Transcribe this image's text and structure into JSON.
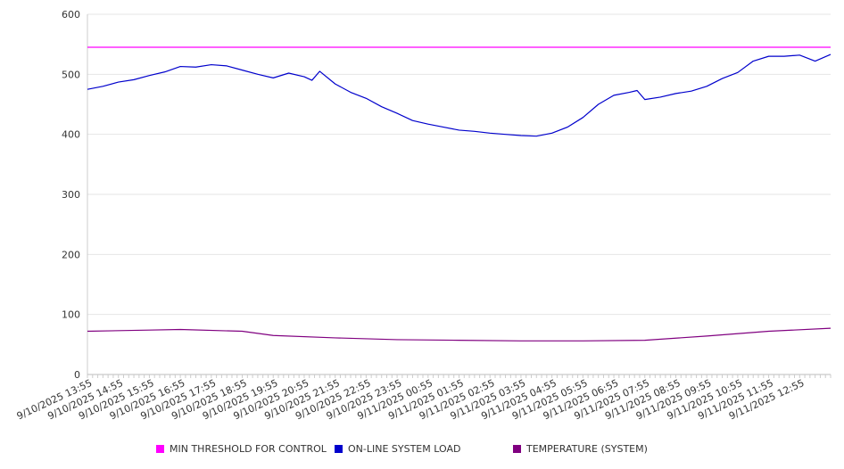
{
  "chart_data": {
    "type": "line",
    "title": "",
    "xlabel": "",
    "ylabel": "",
    "ylim": [
      0,
      600
    ],
    "yticks": [
      0,
      100,
      200,
      300,
      400,
      500,
      600
    ],
    "grid": true,
    "legend_position": "bottom",
    "x_tick_labels": [
      "9/10/2025 13:55",
      "9/10/2025 14:55",
      "9/10/2025 15:55",
      "9/10/2025 16:55",
      "9/10/2025 17:55",
      "9/10/2025 18:55",
      "9/10/2025 19:55",
      "9/10/2025 20:55",
      "9/10/2025 21:55",
      "9/10/2025 22:55",
      "9/10/2025 23:55",
      "9/11/2025 00:55",
      "9/11/2025 01:55",
      "9/11/2025 02:55",
      "9/11/2025 03:55",
      "9/11/2025 04:55",
      "9/11/2025 05:55",
      "9/11/2025 06:55",
      "9/11/2025 07:55",
      "9/11/2025 08:55",
      "9/11/2025 09:55",
      "9/11/2025 10:55",
      "9/11/2025 11:55",
      "9/11/2025 12:55"
    ],
    "x_start": "9/10/2025 13:55",
    "x_end": "9/11/2025 13:55",
    "series": [
      {
        "name": "MIN THRESHOLD FOR CONTROL",
        "color": "#ff00ff",
        "x": [
          "9/10/2025 13:55",
          "9/11/2025 13:55"
        ],
        "values": [
          545,
          545
        ]
      },
      {
        "name": "ON-LINE SYSTEM LOAD",
        "color": "#0000cc",
        "x": [
          "9/10/2025 13:55",
          "9/10/2025 14:25",
          "9/10/2025 14:55",
          "9/10/2025 15:25",
          "9/10/2025 15:55",
          "9/10/2025 16:25",
          "9/10/2025 16:55",
          "9/10/2025 17:25",
          "9/10/2025 17:55",
          "9/10/2025 18:25",
          "9/10/2025 18:55",
          "9/10/2025 19:25",
          "9/10/2025 19:55",
          "9/10/2025 20:25",
          "9/10/2025 20:55",
          "9/10/2025 21:10",
          "9/10/2025 21:25",
          "9/10/2025 21:55",
          "9/10/2025 22:25",
          "9/10/2025 22:55",
          "9/10/2025 23:25",
          "9/10/2025 23:55",
          "9/11/2025 00:25",
          "9/11/2025 00:55",
          "9/11/2025 01:25",
          "9/11/2025 01:55",
          "9/11/2025 02:25",
          "9/11/2025 02:55",
          "9/11/2025 03:25",
          "9/11/2025 03:55",
          "9/11/2025 04:25",
          "9/11/2025 04:55",
          "9/11/2025 05:25",
          "9/11/2025 05:55",
          "9/11/2025 06:25",
          "9/11/2025 06:55",
          "9/11/2025 07:25",
          "9/11/2025 07:40",
          "9/11/2025 07:55",
          "9/11/2025 08:25",
          "9/11/2025 08:55",
          "9/11/2025 09:25",
          "9/11/2025 09:55",
          "9/11/2025 10:25",
          "9/11/2025 10:55",
          "9/11/2025 11:25",
          "9/11/2025 11:55",
          "9/11/2025 12:25",
          "9/11/2025 12:55",
          "9/11/2025 13:25",
          "9/11/2025 13:55"
        ],
        "values": [
          475,
          480,
          487,
          491,
          498,
          504,
          513,
          512,
          516,
          514,
          507,
          500,
          494,
          502,
          496,
          490,
          505,
          484,
          470,
          460,
          446,
          435,
          423,
          417,
          412,
          407,
          405,
          402,
          400,
          398,
          397,
          402,
          412,
          428,
          450,
          465,
          470,
          473,
          458,
          462,
          468,
          472,
          480,
          493,
          503,
          522,
          530,
          530,
          532,
          522,
          533
        ]
      },
      {
        "name": "TEMPERATURE (SYSTEM)",
        "color": "#800080",
        "x": [
          "9/10/2025 13:55",
          "9/10/2025 15:55",
          "9/10/2025 16:55",
          "9/10/2025 18:55",
          "9/10/2025 19:55",
          "9/10/2025 21:55",
          "9/10/2025 23:55",
          "9/11/2025 01:55",
          "9/11/2025 03:55",
          "9/11/2025 05:55",
          "9/11/2025 07:55",
          "9/11/2025 09:55",
          "9/11/2025 11:55",
          "9/11/2025 13:55"
        ],
        "values": [
          72,
          74,
          75,
          72,
          65,
          61,
          58,
          57,
          56,
          56,
          57,
          64,
          72,
          77
        ]
      }
    ]
  }
}
